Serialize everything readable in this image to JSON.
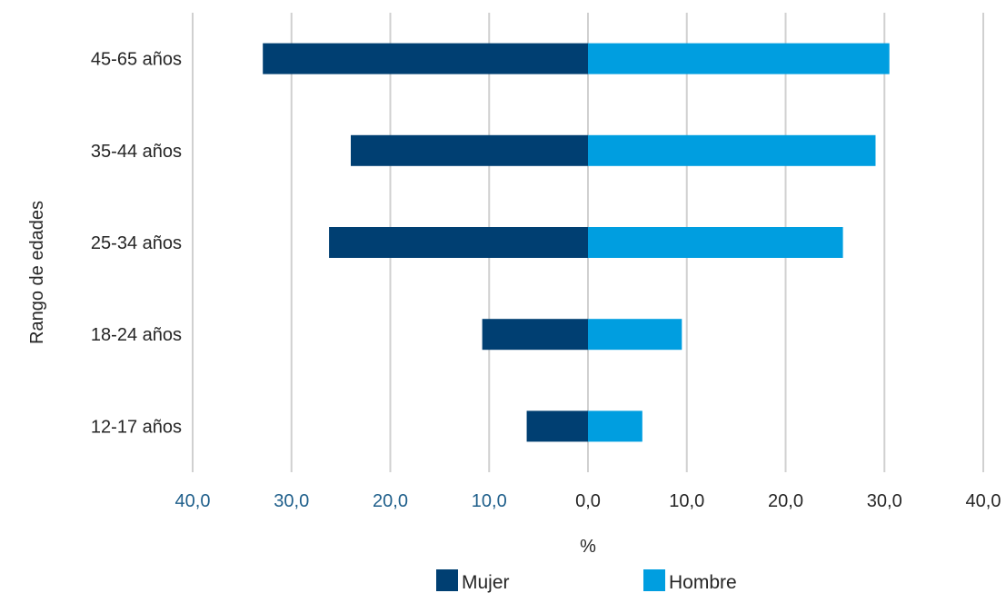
{
  "chart_data": {
    "type": "bar",
    "orientation": "horizontal",
    "layout": "population-pyramid",
    "categories": [
      "45-65 años",
      "35-44 años",
      "25-34 años",
      "18-24 años",
      "12-17 años"
    ],
    "series": [
      {
        "name": "Mujer",
        "color": "#003f72",
        "values": [
          32.9,
          24.0,
          26.2,
          10.7,
          6.2
        ],
        "side": "left"
      },
      {
        "name": "Hombre",
        "color": "#009ee0",
        "values": [
          30.5,
          29.1,
          25.8,
          9.5,
          5.5
        ],
        "side": "right"
      }
    ],
    "xlabel": "%",
    "ylabel": "Rango de edades",
    "xlim": [
      -40,
      40
    ],
    "xticks": [
      "40,0",
      "30,0",
      "20,0",
      "10,0",
      "0,0",
      "10,0",
      "20,0",
      "30,0",
      "40,0"
    ],
    "tick_colors": {
      "negative": "#1f5f8b",
      "non_negative": "#262626"
    },
    "grid": true,
    "legend_position": "bottom"
  }
}
